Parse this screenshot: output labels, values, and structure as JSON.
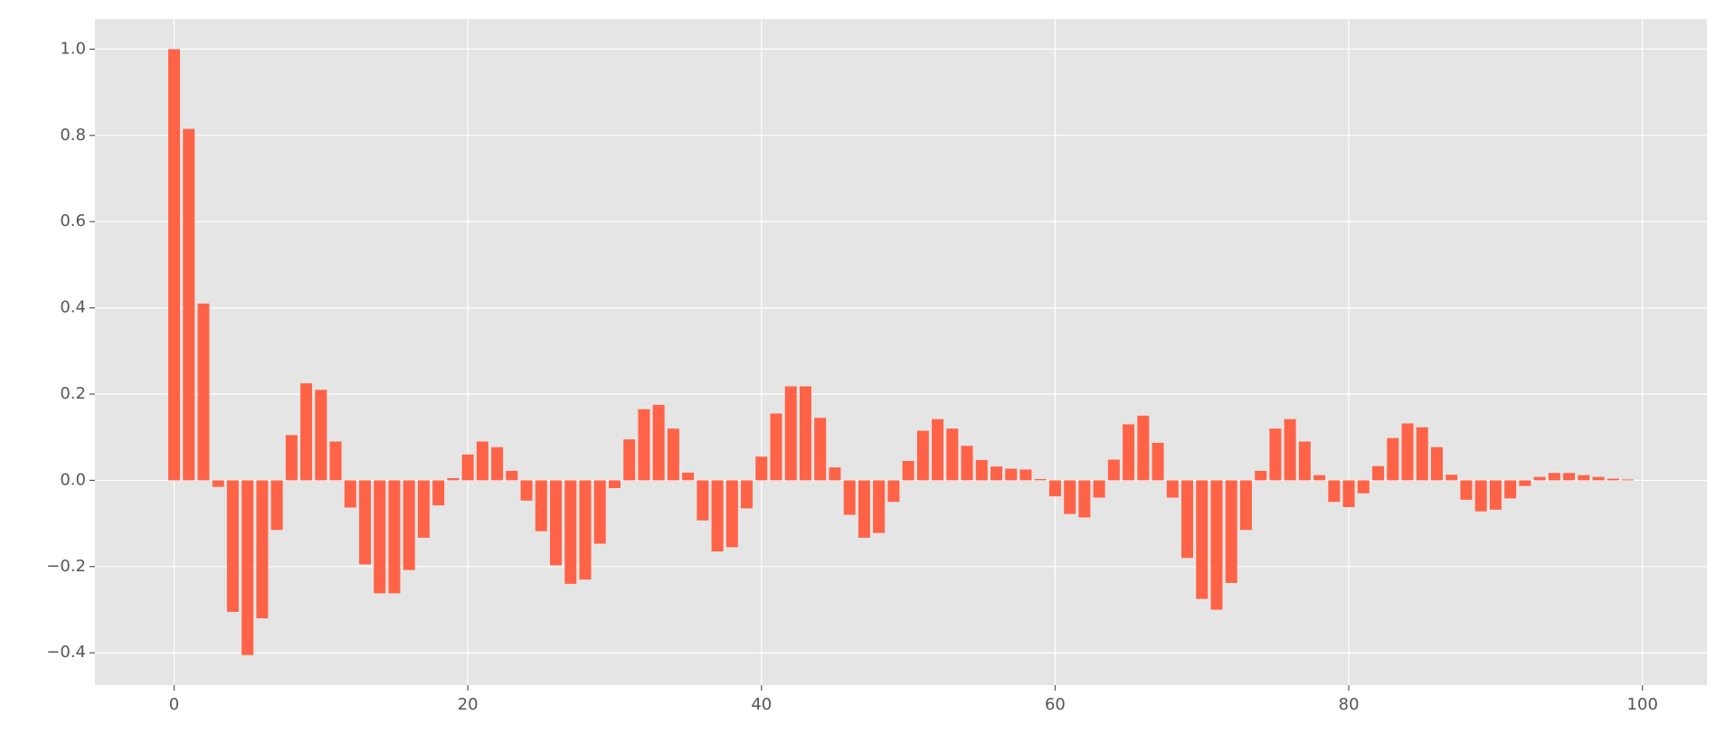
{
  "chart_data": {
    "type": "bar",
    "x": [
      0,
      1,
      2,
      3,
      4,
      5,
      6,
      7,
      8,
      9,
      10,
      11,
      12,
      13,
      14,
      15,
      16,
      17,
      18,
      19,
      20,
      21,
      22,
      23,
      24,
      25,
      26,
      27,
      28,
      29,
      30,
      31,
      32,
      33,
      34,
      35,
      36,
      37,
      38,
      39,
      40,
      41,
      42,
      43,
      44,
      45,
      46,
      47,
      48,
      49,
      50,
      51,
      52,
      53,
      54,
      55,
      56,
      57,
      58,
      59,
      60,
      61,
      62,
      63,
      64,
      65,
      66,
      67,
      68,
      69,
      70,
      71,
      72,
      73,
      74,
      75,
      76,
      77,
      78,
      79,
      80,
      81,
      82,
      83,
      84,
      85,
      86,
      87,
      88,
      89,
      90,
      91,
      92,
      93,
      94,
      95,
      96,
      97,
      98,
      99
    ],
    "values": [
      1.0,
      0.815,
      0.41,
      -0.015,
      -0.305,
      -0.405,
      -0.32,
      -0.115,
      0.105,
      0.225,
      0.21,
      0.09,
      -0.063,
      -0.195,
      -0.262,
      -0.262,
      -0.208,
      -0.133,
      -0.058,
      0.005,
      0.06,
      0.09,
      0.077,
      0.022,
      -0.047,
      -0.118,
      -0.197,
      -0.24,
      -0.23,
      -0.147,
      -0.018,
      0.095,
      0.165,
      0.175,
      0.12,
      0.018,
      -0.093,
      -0.165,
      -0.155,
      -0.065,
      0.055,
      0.155,
      0.218,
      0.218,
      0.145,
      0.03,
      -0.08,
      -0.133,
      -0.122,
      -0.05,
      0.045,
      0.115,
      0.142,
      0.12,
      0.08,
      0.047,
      0.032,
      0.027,
      0.025,
      0.003,
      -0.037,
      -0.078,
      -0.086,
      -0.04,
      0.048,
      0.13,
      0.15,
      0.087,
      -0.04,
      -0.18,
      -0.275,
      -0.3,
      -0.238,
      -0.115,
      0.022,
      0.12,
      0.142,
      0.09,
      0.012,
      -0.05,
      -0.062,
      -0.03,
      0.033,
      0.098,
      0.132,
      0.123,
      0.077,
      0.013,
      -0.045,
      -0.072,
      -0.068,
      -0.042,
      -0.013,
      0.008,
      0.017,
      0.017,
      0.012,
      0.008,
      0.004,
      0.002
    ],
    "color": "#ff6347",
    "xlim": [
      -5.39,
      104.39
    ],
    "xticks": [
      0,
      20,
      40,
      60,
      80,
      100
    ],
    "ylim": [
      -0.475,
      1.07
    ],
    "yticks": [
      {
        "value": -0.4,
        "label": "−0.4"
      },
      {
        "value": -0.2,
        "label": "−0.2"
      },
      {
        "value": 0.0,
        "label": "0.0"
      },
      0.2,
      0.4,
      0.6,
      0.8,
      {
        "value": 1.0,
        "label": "1.0"
      }
    ],
    "grid": true
  }
}
